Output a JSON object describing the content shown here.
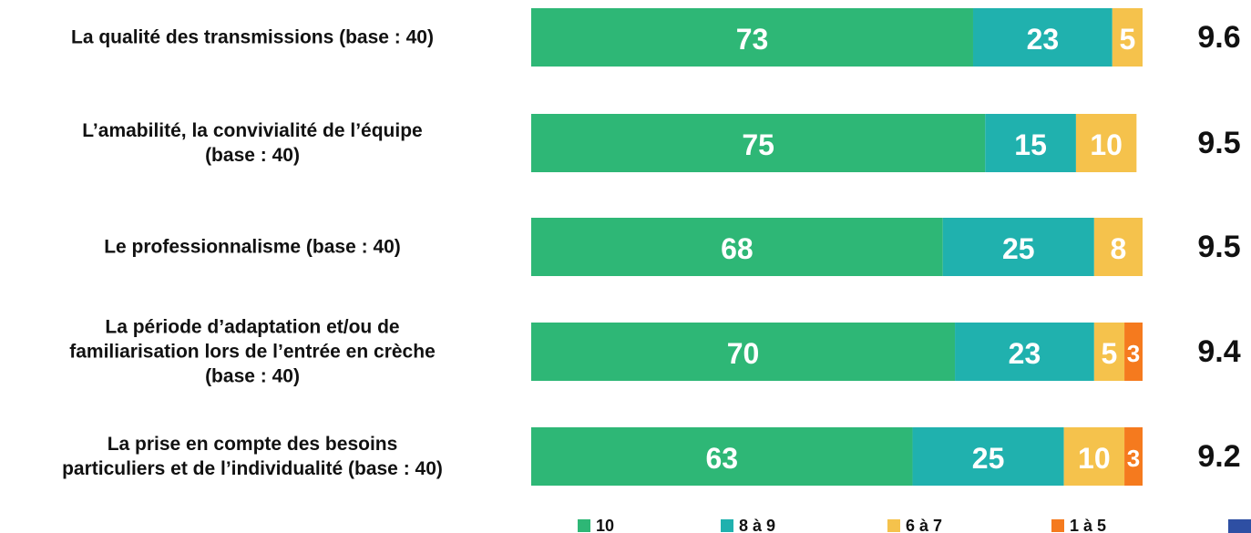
{
  "chart_data": {
    "type": "stacked-bar-horizontal",
    "categories": [
      "La qualité des transmissions (base : 40)",
      "L’amabilité, la convivialité de l’équipe\n(base : 40)",
      "Le professionnalisme (base : 40)",
      "La période d’adaptation et/ou de\nfamiliarisation lors de l’entrée en crèche\n(base : 40)",
      "La prise en compte des besoins\nparticuliers et de l’individualité (base : 40)"
    ],
    "series": [
      {
        "name": "10",
        "color": "#2eb776",
        "values": [
          73,
          75,
          68,
          70,
          63
        ]
      },
      {
        "name": "8 à 9",
        "color": "#20b1ae",
        "values": [
          23,
          15,
          25,
          23,
          25
        ]
      },
      {
        "name": "6 à 7",
        "color": "#f5c24c",
        "values": [
          5,
          10,
          8,
          5,
          10
        ]
      },
      {
        "name": "1 à 5",
        "color": "#f57a1e",
        "values": [
          null,
          null,
          null,
          3,
          3
        ]
      }
    ],
    "scores": [
      9.6,
      9.5,
      9.5,
      9.4,
      9.2
    ]
  }
}
